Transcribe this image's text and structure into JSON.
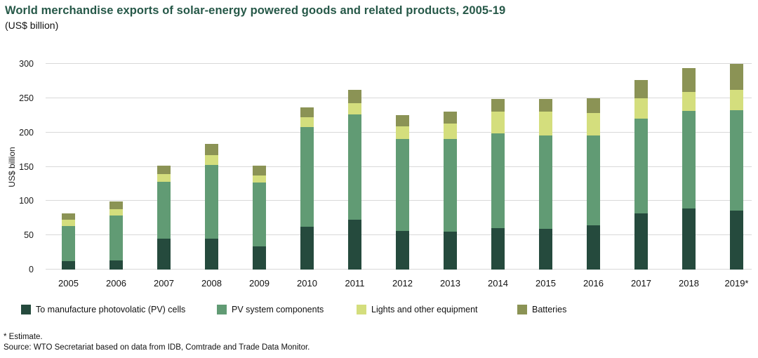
{
  "header": {
    "title": "World merchandise exports of solar-energy powered goods and related products, 2005-19",
    "subtitle": "(US$ billion)"
  },
  "chart_data": {
    "type": "bar",
    "stacked": true,
    "title": "World merchandise exports of solar-energy powered goods and related products, 2005-19",
    "subtitle": "(US$ billion)",
    "xlabel": "",
    "ylabel": "US$ billion",
    "ylim": [
      0,
      300
    ],
    "yticks": [
      0,
      50,
      100,
      150,
      200,
      250,
      300
    ],
    "grid": true,
    "legend_position": "bottom",
    "categories": [
      "2005",
      "2006",
      "2007",
      "2008",
      "2009",
      "2010",
      "2011",
      "2012",
      "2013",
      "2014",
      "2015",
      "2016",
      "2017",
      "2018",
      "2019*"
    ],
    "series": [
      {
        "name": "To manufacture photovolatic (PV) cells",
        "color": "#254a3d",
        "values": [
          12,
          13,
          45,
          45,
          34,
          62,
          73,
          56,
          55,
          60,
          59,
          65,
          82,
          89,
          86
        ]
      },
      {
        "name": "PV system components",
        "color": "#619b74",
        "values": [
          52,
          66,
          83,
          108,
          93,
          146,
          153,
          134,
          135,
          139,
          137,
          131,
          138,
          142,
          146
        ]
      },
      {
        "name": "Lights and other equipment",
        "color": "#d4de7d",
        "values": [
          9,
          9,
          11,
          14,
          10,
          14,
          17,
          19,
          23,
          31,
          34,
          32,
          30,
          28,
          30
        ]
      },
      {
        "name": "Batteries",
        "color": "#8b9355",
        "values": [
          9,
          11,
          13,
          16,
          15,
          15,
          19,
          16,
          17,
          19,
          19,
          22,
          26,
          35,
          38
        ]
      }
    ],
    "totals": [
      82,
      99,
      152,
      183,
      152,
      237,
      262,
      225,
      230,
      249,
      249,
      250,
      276,
      294,
      300
    ]
  },
  "footer": {
    "note": "* Estimate.",
    "source": "Source: WTO Secretariat based on data from IDB, Comtrade and Trade Data Monitor."
  },
  "colors": {
    "title": "#265848",
    "gridline": "#d9d9d9",
    "text": "#1a1a1a"
  }
}
